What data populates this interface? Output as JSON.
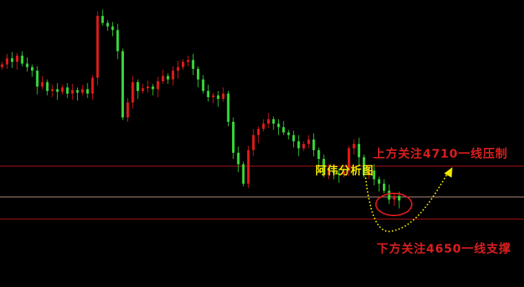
{
  "chart_data": {
    "type": "candlestick",
    "ylim": [
      4573,
      4898
    ],
    "grid": false,
    "colors": {
      "up": "#e21b1b",
      "down": "#39d939",
      "background": "#000000"
    },
    "closes": [
      4825,
      4832,
      4828,
      4835,
      4826,
      4822,
      4818,
      4800,
      4805,
      4795,
      4797,
      4794,
      4799,
      4792,
      4796,
      4793,
      4797,
      4792,
      4810,
      4880,
      4872,
      4868,
      4864,
      4840,
      4765,
      4782,
      4805,
      4795,
      4798,
      4800,
      4797,
      4806,
      4812,
      4808,
      4818,
      4822,
      4828,
      4830,
      4820,
      4808,
      4795,
      4788,
      4790,
      4786,
      4792,
      4760,
      4725,
      4712,
      4690,
      4728,
      4745,
      4752,
      4758,
      4763,
      4758,
      4754,
      4748,
      4745,
      4738,
      4730,
      4735,
      4740,
      4728,
      4718,
      4700,
      4705,
      4702,
      4700,
      4704,
      4730,
      4735,
      4720,
      4700,
      4705,
      4695,
      4690,
      4682,
      4672,
      4676,
      4671
    ],
    "levels": [
      {
        "price": 4710,
        "color": "#c81414"
      },
      {
        "price": 4675,
        "color": "#d2a08c"
      },
      {
        "price": 4650,
        "color": "#c81414"
      }
    ],
    "annotations": {
      "resistance": "上方关注4710一线压制",
      "support": "下方关注4650一线支撑",
      "watermark": "阿伟分析图"
    },
    "arrow_color": "#f2e600",
    "circle_color": "#e21b1b"
  }
}
